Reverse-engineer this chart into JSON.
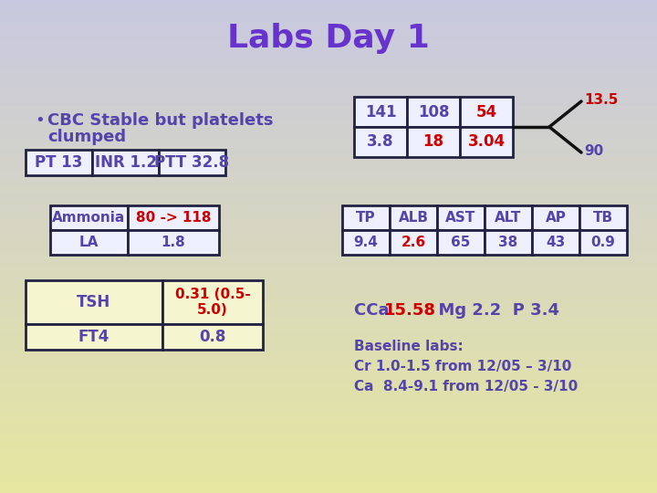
{
  "title": "Labs Day 1",
  "title_color": "#6633CC",
  "title_fontsize": 26,
  "bullet_text_line1": "CBC Stable but platelets",
  "bullet_text_line2": "clumped",
  "bullet_color": "#5544AA",
  "bullet_fontsize": 13,
  "pt_row": [
    "PT 13",
    "INR 1.2",
    "PTT 32.8"
  ],
  "ammonia_label": "Ammonia",
  "ammonia_value": "80 -> 118",
  "la_label": "LA",
  "la_value": "1.8",
  "tsh_label": "TSH",
  "tsh_value": "0.31 (0.5-\n5.0)",
  "ft4_label": "FT4",
  "ft4_value": "0.8",
  "chem_top": [
    "141",
    "108",
    "54"
  ],
  "chem_bot": [
    "3.8",
    "18",
    "3.04"
  ],
  "chem_top_colors": [
    "#5544AA",
    "#5544AA",
    "#CC0000"
  ],
  "chem_bot_colors": [
    "#5544AA",
    "#CC0000",
    "#CC0000"
  ],
  "chem_side_top": "13.5",
  "chem_side_bot": "90",
  "lft_headers": [
    "TP",
    "ALB",
    "AST",
    "ALT",
    "AP",
    "TB"
  ],
  "lft_values": [
    "9.4",
    "2.6",
    "65",
    "38",
    "43",
    "0.9"
  ],
  "lft_val_colors": [
    "#5544AA",
    "#CC0000",
    "#5544AA",
    "#5544AA",
    "#5544AA",
    "#5544AA"
  ],
  "cca_prefix": "CCa ",
  "cca_value": "15.58",
  "cca_suffix": "  Mg 2.2  P 3.4",
  "baseline_text": "Baseline labs:\nCr 1.0-1.5 from 12/05 – 3/10\nCa  8.4-9.1 from 12/05 - 3/10",
  "red_color": "#CC0000",
  "purple_color": "#5544AA",
  "dark_border": "#222244",
  "cell_bg_light": "#EEF0FF",
  "cell_bg_yellow": "#F5F5D0"
}
